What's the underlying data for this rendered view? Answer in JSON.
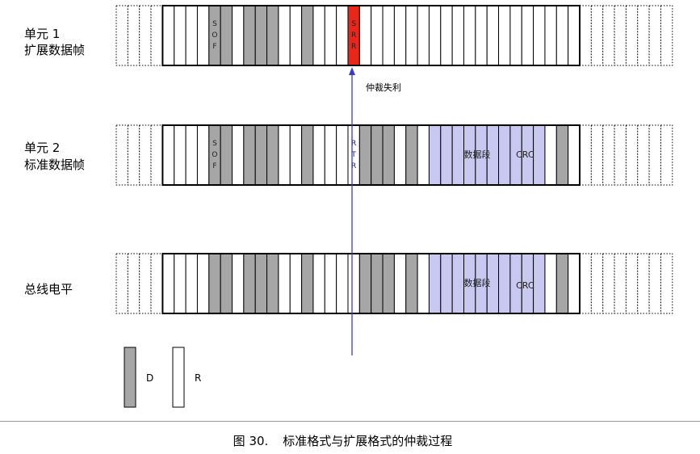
{
  "rows": [
    {
      "id": "extended",
      "label_lines": [
        "单元 1",
        "扩展数据帧"
      ],
      "frame": "extended"
    },
    {
      "id": "standard",
      "label_lines": [
        "单元 2",
        "标准数据帧"
      ],
      "frame": "standard"
    },
    {
      "id": "bus",
      "label_lines": [
        "总线电平"
      ],
      "frame": "bus"
    }
  ],
  "bit_labels": {
    "sof": [
      "S",
      "O",
      "F"
    ],
    "srr": [
      "S",
      "R",
      "R"
    ],
    "rtr": [
      "R",
      "T",
      "R"
    ]
  },
  "segments": {
    "data": "数据段",
    "crc": "CRC"
  },
  "annotation": "仲裁失利",
  "legend": {
    "dominant": "D",
    "recessive": "R"
  },
  "caption": {
    "number": "图 30.",
    "title": "标准格式与扩展格式的仲裁过程"
  },
  "colors": {
    "dominant": "#a6a6a6",
    "recessive": "#ffffff",
    "srr": "#e8261a",
    "data_segment": "#c8c8f0",
    "arrow": "#3a3acc",
    "stroke": "#000000"
  }
}
